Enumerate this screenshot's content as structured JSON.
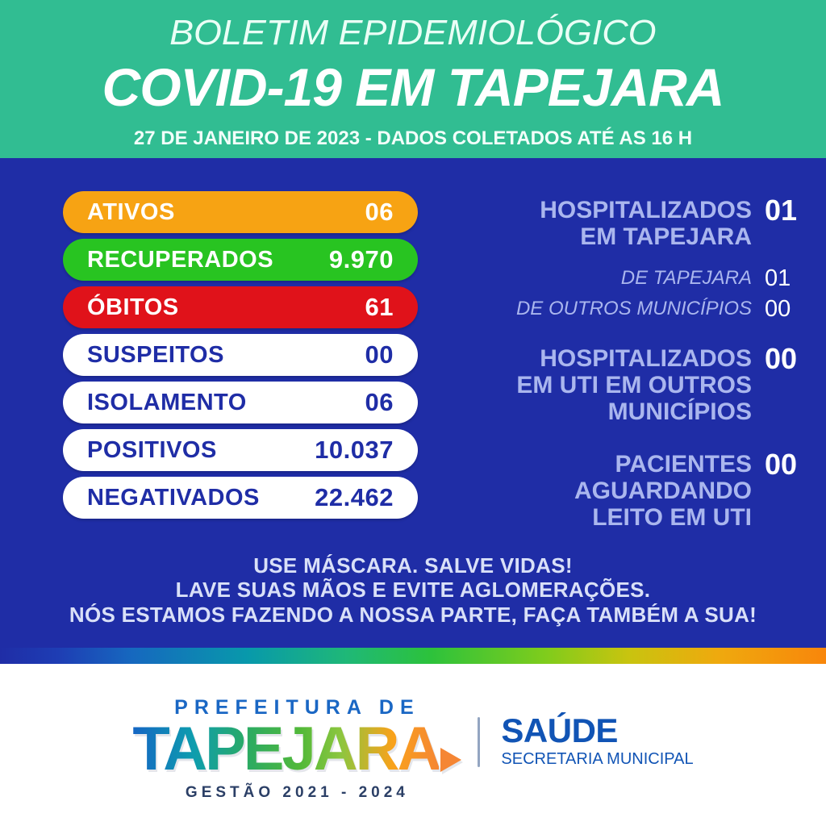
{
  "header": {
    "kicker": "BOLETIM EPIDEMIOLÓGICO",
    "title": "COVID-19 EM TAPEJARA",
    "subtitle": "27 DE JANEIRO DE 2023 - DADOS COLETADOS ATÉ AS 16 H",
    "background_color": "#31BD92",
    "text_color": "#FFFFFF"
  },
  "stats_panel": {
    "background_color": "#1F2DA6",
    "pills": [
      {
        "label": "ATIVOS",
        "value": "06",
        "color": "#F7A313",
        "text_color": "#FFFFFF"
      },
      {
        "label": "RECUPERADOS",
        "value": "9.970",
        "color": "#28C421",
        "text_color": "#FFFFFF"
      },
      {
        "label": "ÓBITOS",
        "value": "61",
        "color": "#E0121A",
        "text_color": "#FFFFFF"
      },
      {
        "label": "SUSPEITOS",
        "value": "00",
        "color": "#FFFFFF",
        "text_color": "#1F2DA6"
      },
      {
        "label": "ISOLAMENTO",
        "value": "06",
        "color": "#FFFFFF",
        "text_color": "#1F2DA6"
      },
      {
        "label": "POSITIVOS",
        "value": "10.037",
        "color": "#FFFFFF",
        "text_color": "#1F2DA6"
      },
      {
        "label": "NEGATIVADOS",
        "value": "22.462",
        "color": "#FFFFFF",
        "text_color": "#1F2DA6"
      }
    ],
    "hospital_stats": [
      {
        "label": "HOSPITALIZADOS\nEM TAPEJARA",
        "value": "01"
      },
      {
        "label": "DE TAPEJARA",
        "value": "01"
      },
      {
        "label": "DE OUTROS MUNICÍPIOS",
        "value": "00"
      },
      {
        "label": "HOSPITALIZADOS\nEM UTI EM OUTROS\nMUNICÍPIOS",
        "value": "00"
      },
      {
        "label": "PACIENTES\nAGUARDANDO\nLEITO EM UTI",
        "value": "00"
      }
    ],
    "label_color": "#AAB6EE",
    "value_color": "#FFFFFF",
    "messages": [
      "USE MÁSCARA. SALVE VIDAS!",
      "LAVE SUAS MÃOS E EVITE AGLOMERAÇÕES.",
      "NÓS ESTAMOS FAZENDO A NOSSA PARTE, FAÇA TAMBÉM A SUA!"
    ]
  },
  "footer": {
    "prefeitura_label": "PREFEITURA DE",
    "city_name": "TAPEJARA",
    "term_label": "GESTÃO 2021 - 2024",
    "department": "SAÚDE",
    "department_sub": "SECRETARIA MUNICIPAL",
    "accent_blue": "#1154B5",
    "logo_gradient": [
      "#1565C4",
      "#0E9DAE",
      "#2CAB62",
      "#8CC63F",
      "#F9A21B",
      "#F58634"
    ]
  }
}
